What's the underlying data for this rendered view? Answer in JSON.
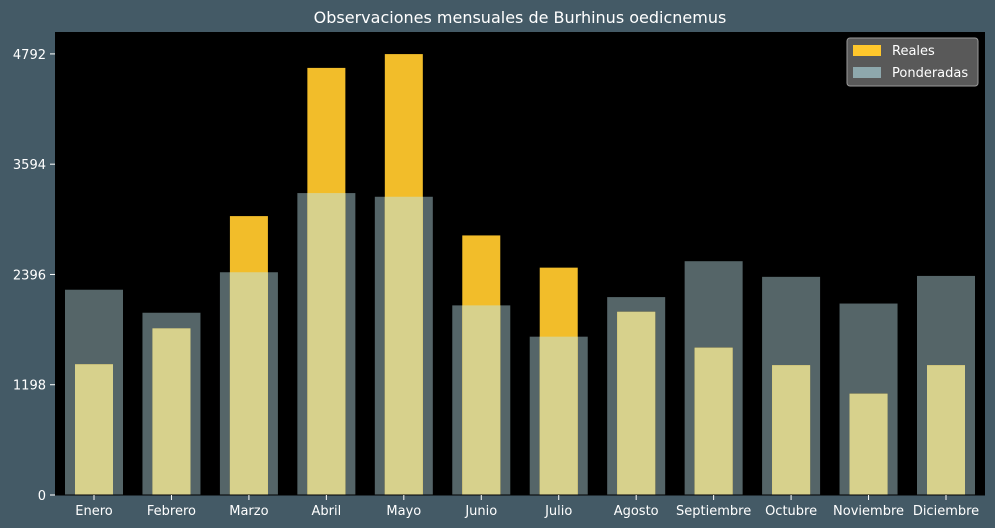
{
  "chart_data": {
    "type": "bar",
    "title": "Observaciones mensuales de Burhinus oedicnemus",
    "xlabel": "",
    "ylabel": "",
    "categories": [
      "Enero",
      "Febrero",
      "Marzo",
      "Abril",
      "Mayo",
      "Junio",
      "Julio",
      "Agosto",
      "Septiembre",
      "Octubre",
      "Noviembre",
      "Diciembre"
    ],
    "yticks": [
      0,
      1198,
      2396,
      3594,
      4792
    ],
    "ylim": [
      0,
      5030
    ],
    "grid": false,
    "legend_position": "top-right",
    "series": [
      {
        "name": "Reales",
        "color": "#ffc72c",
        "values": [
          1420,
          1810,
          3030,
          4640,
          4790,
          2820,
          2470,
          1990,
          1600,
          1410,
          1100,
          1410
        ]
      },
      {
        "name": "Ponderadas",
        "color": "#8ea8ad",
        "values": [
          2230,
          1980,
          2420,
          3280,
          3240,
          2060,
          1720,
          2150,
          2540,
          2370,
          2080,
          2380
        ]
      }
    ]
  }
}
